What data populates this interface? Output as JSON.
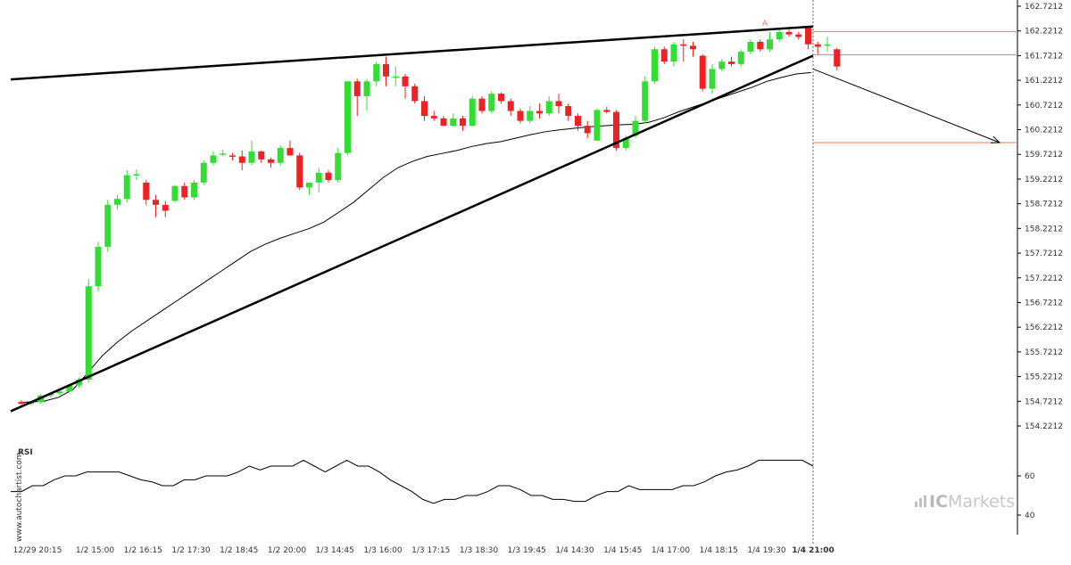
{
  "watermark": "www.autochartist.com",
  "brand": {
    "ic": "IC",
    "markets": "Markets"
  },
  "rsi_label": "RSI",
  "rsi_ticks": [
    "60",
    "40"
  ],
  "pattern_label": "A",
  "colors": {
    "up": "#33dd33",
    "down": "#ee2222",
    "level": "#f07b4f",
    "trend": "#000000",
    "ma": "#000000"
  },
  "chart_data": {
    "type": "candlestick",
    "yticks": [
      "162.7212",
      "162.2212",
      "161.7212",
      "161.2212",
      "160.7212",
      "160.2212",
      "159.7212",
      "159.2212",
      "158.7212",
      "158.2212",
      "157.7212",
      "157.2212",
      "156.7212",
      "156.2212",
      "155.7212",
      "155.2212",
      "154.7212",
      "154.2212"
    ],
    "ylim": [
      154.0,
      162.85
    ],
    "xticks": [
      "12/29 20:15",
      "1/2 15:00",
      "1/2 16:15",
      "1/2 17:30",
      "1/2 18:45",
      "1/2 20:00",
      "1/3 14:45",
      "1/3 16:00",
      "1/3 17:15",
      "1/3 18:30",
      "1/3 19:45",
      "1/4 14:30",
      "1/4 15:45",
      "1/4 17:00",
      "1/4 18:15",
      "1/4 19:30",
      "1/4 21:00"
    ],
    "xtick_index": [
      0,
      6,
      11,
      16,
      21,
      26,
      31,
      36,
      41,
      46,
      51,
      56,
      61,
      66,
      71,
      76,
      81
    ],
    "candles": [
      [
        154.71,
        154.74,
        154.66,
        154.67
      ],
      [
        154.67,
        154.73,
        154.64,
        154.7
      ],
      [
        154.7,
        154.86,
        154.68,
        154.84
      ],
      [
        154.84,
        154.9,
        154.8,
        154.88
      ],
      [
        154.88,
        154.96,
        154.84,
        154.92
      ],
      [
        154.92,
        155.06,
        154.9,
        155.04
      ],
      [
        155.04,
        155.2,
        155.0,
        155.16
      ],
      [
        155.16,
        157.2,
        155.1,
        157.05
      ],
      [
        157.05,
        157.95,
        156.95,
        157.85
      ],
      [
        157.85,
        158.8,
        157.75,
        158.7
      ],
      [
        158.7,
        158.9,
        158.6,
        158.82
      ],
      [
        158.82,
        159.4,
        158.75,
        159.3
      ],
      [
        159.3,
        159.42,
        159.2,
        159.32
      ],
      [
        159.15,
        159.2,
        158.7,
        158.8
      ],
      [
        158.8,
        158.9,
        158.45,
        158.7
      ],
      [
        158.7,
        158.78,
        158.45,
        158.58
      ],
      [
        158.78,
        159.1,
        158.75,
        159.08
      ],
      [
        159.08,
        159.15,
        158.8,
        158.85
      ],
      [
        158.85,
        159.2,
        158.8,
        159.15
      ],
      [
        159.15,
        159.6,
        159.1,
        159.55
      ],
      [
        159.55,
        159.78,
        159.5,
        159.7
      ],
      [
        159.72,
        159.82,
        159.68,
        159.74
      ],
      [
        159.7,
        159.75,
        159.6,
        159.68
      ],
      [
        159.68,
        159.8,
        159.4,
        159.55
      ],
      [
        159.55,
        160.0,
        159.5,
        159.78
      ],
      [
        159.78,
        159.8,
        159.55,
        159.62
      ],
      [
        159.62,
        159.65,
        159.45,
        159.55
      ],
      [
        159.55,
        159.9,
        159.5,
        159.85
      ],
      [
        159.85,
        160.0,
        159.7,
        159.7
      ],
      [
        159.7,
        159.75,
        159.0,
        159.05
      ],
      [
        159.05,
        159.15,
        158.9,
        159.15
      ],
      [
        159.15,
        159.45,
        158.95,
        159.35
      ],
      [
        159.35,
        159.4,
        159.15,
        159.2
      ],
      [
        159.2,
        159.85,
        159.15,
        159.75
      ],
      [
        159.75,
        161.2,
        159.7,
        161.2
      ],
      [
        161.2,
        161.25,
        160.5,
        160.9
      ],
      [
        160.9,
        161.25,
        160.6,
        161.2
      ],
      [
        161.2,
        161.6,
        161.1,
        161.55
      ],
      [
        161.55,
        161.7,
        161.1,
        161.3
      ],
      [
        161.3,
        161.5,
        161.1,
        161.3
      ],
      [
        161.3,
        161.35,
        160.85,
        161.1
      ],
      [
        161.1,
        161.15,
        160.75,
        160.8
      ],
      [
        160.8,
        160.9,
        160.4,
        160.5
      ],
      [
        160.5,
        160.6,
        160.4,
        160.45
      ],
      [
        160.45,
        160.5,
        160.3,
        160.3
      ],
      [
        160.3,
        160.55,
        160.28,
        160.45
      ],
      [
        160.45,
        160.5,
        160.2,
        160.3
      ],
      [
        160.3,
        160.9,
        160.28,
        160.85
      ],
      [
        160.85,
        160.9,
        160.55,
        160.6
      ],
      [
        160.6,
        161.0,
        160.55,
        160.95
      ],
      [
        160.95,
        160.98,
        160.75,
        160.8
      ],
      [
        160.8,
        160.85,
        160.5,
        160.6
      ],
      [
        160.6,
        160.65,
        160.35,
        160.4
      ],
      [
        160.4,
        160.7,
        160.35,
        160.6
      ],
      [
        160.6,
        160.75,
        160.45,
        160.55
      ],
      [
        160.55,
        160.9,
        160.5,
        160.8
      ],
      [
        160.8,
        160.95,
        160.55,
        160.7
      ],
      [
        160.7,
        160.75,
        160.4,
        160.5
      ],
      [
        160.5,
        160.55,
        160.2,
        160.3
      ],
      [
        160.3,
        160.4,
        160.05,
        160.15
      ],
      [
        160.0,
        160.65,
        160.0,
        160.62
      ],
      [
        160.62,
        160.68,
        160.55,
        160.58
      ],
      [
        160.58,
        160.62,
        159.8,
        159.85
      ],
      [
        159.85,
        160.1,
        159.8,
        160.05
      ],
      [
        160.1,
        160.5,
        160.05,
        160.4
      ],
      [
        160.4,
        161.3,
        160.35,
        161.2
      ],
      [
        161.2,
        161.9,
        161.15,
        161.85
      ],
      [
        161.85,
        161.9,
        161.55,
        161.6
      ],
      [
        161.6,
        162.0,
        161.5,
        161.95
      ],
      [
        161.95,
        162.05,
        161.6,
        161.92
      ],
      [
        161.92,
        162.0,
        161.7,
        161.85
      ],
      [
        161.72,
        161.75,
        161.0,
        161.05
      ],
      [
        161.05,
        161.55,
        160.95,
        161.45
      ],
      [
        161.45,
        161.65,
        161.4,
        161.6
      ],
      [
        161.6,
        161.7,
        161.5,
        161.55
      ],
      [
        161.55,
        161.85,
        161.5,
        161.8
      ],
      [
        161.8,
        162.05,
        161.75,
        162.0
      ],
      [
        162.0,
        162.05,
        161.8,
        161.85
      ],
      [
        161.85,
        162.2,
        161.8,
        162.05
      ],
      [
        162.05,
        162.28,
        162.0,
        162.2
      ],
      [
        162.2,
        162.25,
        162.1,
        162.15
      ],
      [
        162.15,
        162.2,
        162.05,
        162.1
      ],
      [
        162.3,
        162.32,
        161.85,
        161.95
      ],
      [
        161.95,
        162.0,
        161.75,
        161.9
      ],
      [
        161.92,
        162.1,
        161.8,
        161.95
      ],
      [
        161.85,
        161.88,
        161.42,
        161.5
      ]
    ],
    "ma": [
      [
        0,
        154.7
      ],
      [
        3,
        154.72
      ],
      [
        5,
        154.8
      ],
      [
        7,
        154.96
      ],
      [
        9,
        155.3
      ],
      [
        11,
        155.65
      ],
      [
        13,
        155.92
      ],
      [
        15,
        156.15
      ],
      [
        17,
        156.35
      ],
      [
        19,
        156.55
      ],
      [
        21,
        156.75
      ],
      [
        23,
        156.95
      ],
      [
        25,
        157.15
      ],
      [
        27,
        157.35
      ],
      [
        29,
        157.55
      ],
      [
        31,
        157.75
      ],
      [
        33,
        157.9
      ],
      [
        35,
        158.02
      ],
      [
        37,
        158.12
      ],
      [
        39,
        158.22
      ],
      [
        41,
        158.35
      ],
      [
        43,
        158.55
      ],
      [
        45,
        158.75
      ],
      [
        47,
        159.0
      ],
      [
        49,
        159.25
      ],
      [
        51,
        159.45
      ],
      [
        53,
        159.58
      ],
      [
        55,
        159.68
      ],
      [
        57,
        159.74
      ],
      [
        59,
        159.8
      ],
      [
        61,
        159.88
      ],
      [
        63,
        159.94
      ],
      [
        65,
        159.98
      ],
      [
        67,
        160.05
      ],
      [
        69,
        160.12
      ],
      [
        71,
        160.18
      ],
      [
        73,
        160.22
      ],
      [
        75,
        160.25
      ],
      [
        77,
        160.28
      ],
      [
        79,
        160.3
      ],
      [
        81,
        160.32
      ],
      [
        83,
        160.33
      ],
      [
        85,
        160.37
      ],
      [
        87,
        160.46
      ],
      [
        89,
        160.58
      ],
      [
        91,
        160.68
      ],
      [
        93,
        160.78
      ],
      [
        95,
        160.88
      ],
      [
        97,
        160.98
      ],
      [
        99,
        161.08
      ],
      [
        101,
        161.2
      ],
      [
        103,
        161.28
      ],
      [
        105,
        161.35
      ],
      [
        107,
        161.38
      ]
    ],
    "ma_xscale": 0.7692,
    "trend_upper": [
      [
        0,
        161.24
      ],
      [
        84,
        162.31
      ]
    ],
    "trend_lower": [
      [
        0,
        154.52
      ],
      [
        84,
        161.72
      ]
    ],
    "levels": [
      162.21,
      161.74,
      159.96
    ],
    "forecast": [
      [
        84,
        161.45
      ],
      [
        94,
        159.96
      ]
    ],
    "rsi": [
      52,
      52,
      55,
      55,
      58,
      60,
      60,
      62,
      62,
      62,
      62,
      60,
      58,
      57,
      55,
      55,
      58,
      58,
      60,
      60,
      60,
      62,
      65,
      63,
      65,
      65,
      65,
      68,
      65,
      62,
      65,
      68,
      65,
      65,
      62,
      58,
      55,
      52,
      48,
      46,
      48,
      48,
      50,
      50,
      52,
      55,
      55,
      53,
      50,
      50,
      48,
      48,
      47,
      47,
      50,
      52,
      52,
      55,
      53,
      53,
      53,
      53,
      55,
      55,
      57,
      60,
      62,
      63,
      65,
      68,
      68,
      68,
      68,
      68,
      65
    ]
  }
}
